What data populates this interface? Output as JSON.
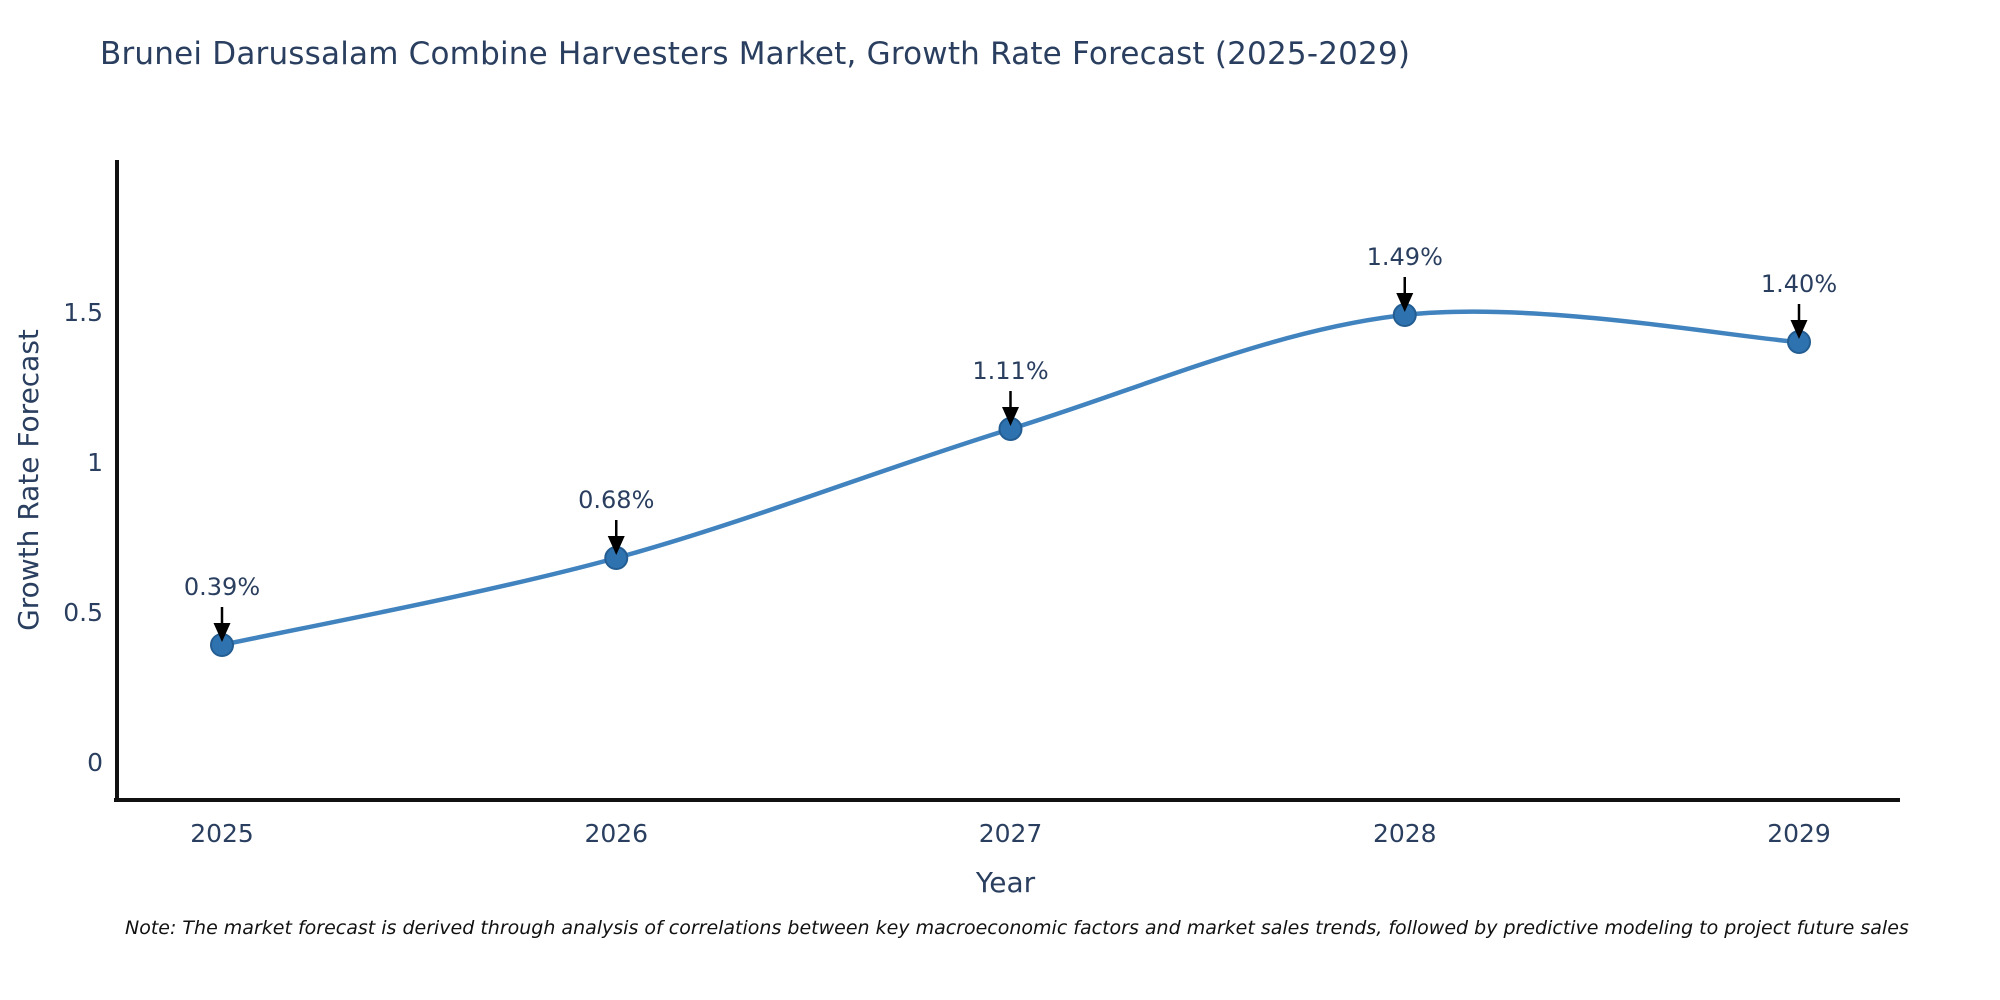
{
  "page": {
    "background": "#ffffff"
  },
  "chart_data": {
    "type": "line",
    "title": "Brunei Darussalam Combine Harvesters Market, Growth Rate Forecast (2025-2029)",
    "xlabel": "Year",
    "ylabel": "Growth Rate Forecast",
    "categories": [
      "2025",
      "2026",
      "2027",
      "2028",
      "2029"
    ],
    "series": [
      {
        "name": "Growth Rate Forecast",
        "values": [
          0.39,
          0.68,
          1.11,
          1.49,
          1.4
        ],
        "point_labels": [
          "0.39%",
          "0.68%",
          "1.11%",
          "1.49%",
          "1.40%"
        ]
      }
    ],
    "yticks": [
      0,
      0.5,
      1,
      1.5
    ],
    "ytick_labels": [
      "0",
      "0.5",
      "1",
      "1.5"
    ],
    "ylim": [
      0,
      1.95
    ],
    "grid": false,
    "legend_position": "none",
    "line_shape": "spline",
    "marker": "circle",
    "annotations_have_arrows": true,
    "colors": {
      "line": "#4183be",
      "marker_fill": "#2e72b0",
      "marker_edge": "#235d92",
      "axis_line": "#111111",
      "tick_text": "#2a3f5f",
      "title_text": "#2a3f5f",
      "annotation_text": "#2a3f5f",
      "annotation_arrow": "#000000"
    }
  },
  "note": {
    "text": "Note: The market forecast is derived through analysis of correlations between key macroeconomic factors and market sales trends, followed by predictive modeling to project future sales"
  }
}
